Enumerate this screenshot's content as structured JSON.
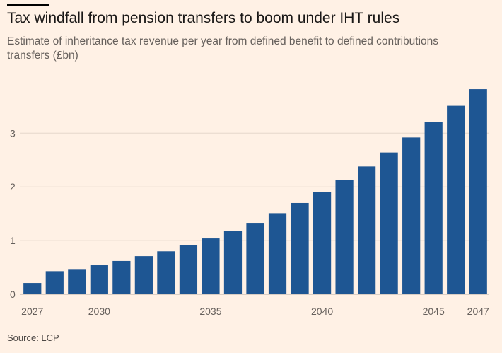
{
  "chart_data": {
    "type": "bar",
    "title": "Tax windfall from pension transfers to boom under IHT rules",
    "subtitle": "Estimate of inheritance tax revenue per year from defined benefit to defined contributions transfers (£bn)",
    "categories": [
      2027,
      2028,
      2029,
      2030,
      2031,
      2032,
      2033,
      2034,
      2035,
      2036,
      2037,
      2038,
      2039,
      2040,
      2041,
      2042,
      2043,
      2044,
      2045,
      2046,
      2047
    ],
    "values": [
      0.21,
      0.43,
      0.47,
      0.54,
      0.62,
      0.71,
      0.8,
      0.91,
      1.04,
      1.18,
      1.33,
      1.51,
      1.7,
      1.91,
      2.13,
      2.38,
      2.64,
      2.92,
      3.21,
      3.51,
      3.82
    ],
    "ylim": [
      0,
      3.9
    ],
    "yticks": [
      0,
      1,
      2,
      3
    ],
    "xticks": [
      2027,
      2030,
      2035,
      2040,
      2045,
      2047
    ],
    "grid": true
  },
  "footer": {
    "source": "Source: LCP"
  },
  "colors": {
    "background": "#fff1e5",
    "bar": "#1e5693",
    "grid": "#e6d8cb",
    "baseline": "#b5aba2",
    "accent": "#000000",
    "title": "#1a1817",
    "subtitle": "#66605c",
    "axis_text": "#66605c"
  }
}
